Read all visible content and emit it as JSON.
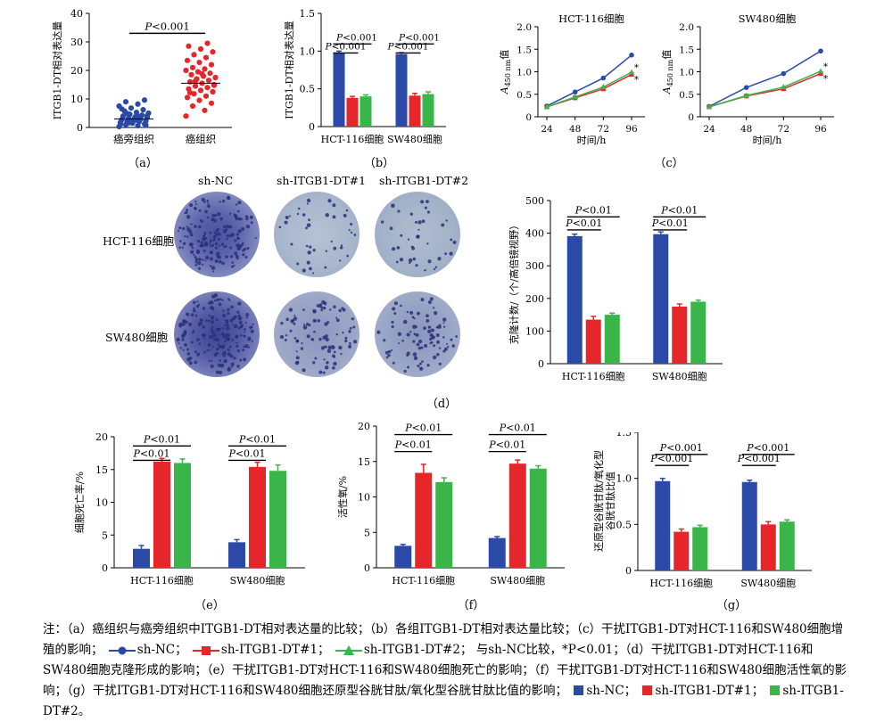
{
  "colors": {
    "nc": "#2b4aa8",
    "dt1": "#e5262a",
    "dt2": "#3ab54a"
  },
  "captions": [
    "（a）",
    "（b）",
    "（c）",
    "（d）",
    "（e）",
    "（f）",
    "（g）"
  ],
  "panel_d_labels": {
    "cols": [
      "sh-NC",
      "sh-ITGB1-DT#1",
      "sh-ITGB1-DT#2"
    ],
    "rows": [
      "HCT-116细胞",
      "SW480细胞"
    ]
  },
  "note": {
    "p1": "注：（a）癌组织与癌旁组织中ITGB1-DT相对表达量的比较；（b）各组ITGB1-DT相对表达量比较；（c）干扰ITGB1-DT对HCT-116和SW480细胞增殖的影响；",
    "l1": "sh-NC；",
    "l2": "sh-ITGB1-DT#1；",
    "l3": "sh-ITGB1-DT#2；",
    "p2": "与sh-NC比较，*P<0.01；（d）干扰ITGB1-DT对HCT-116和SW480细胞克隆形成的影响；（e）干扰ITGB1-DT对HCT-116和SW480细胞死亡的影响；（f）干扰ITGB1-DT对HCT-116和SW480细胞活性氧的影响；（g）干扰ITGB1-DT对HCT-116和SW480细胞还原型谷胱甘肽/氧化型谷胱甘肽比值的影响；",
    "b1": "sh-NC；",
    "b2": "sh-ITGB1-DT#1；",
    "b3": "sh-ITGB1-DT#2。"
  },
  "chart_data": [
    {
      "id": "a",
      "type": "scatter",
      "ylabel": "ITGB1-DT相对表达量",
      "ylim": [
        0,
        40
      ],
      "yticks": [
        0,
        10,
        20,
        30,
        40
      ],
      "categories": [
        "癌旁组织",
        "癌组织"
      ],
      "pval": "P<0.001",
      "group_means": [
        3,
        15.5
      ],
      "points": {
        "癌旁组织": [
          0.3,
          0.6,
          1,
          1.2,
          1.5,
          1.8,
          2,
          2.1,
          2.3,
          2.5,
          2.7,
          3,
          3.2,
          3.5,
          3.7,
          4,
          4.3,
          4.6,
          5,
          5.3,
          5.8,
          6.2,
          6.8,
          7.5,
          8.2,
          9,
          9.6,
          2.2,
          1.1,
          3.8,
          4.9,
          0.8,
          2.9,
          6.5,
          3.3,
          1.6,
          4.1,
          2.6
        ],
        "癌组织": [
          4,
          6,
          7.5,
          8.5,
          9.5,
          10.5,
          11,
          11.8,
          12.5,
          13,
          13.5,
          14,
          14.5,
          15,
          15.5,
          16,
          16.5,
          17,
          17.5,
          18,
          18.5,
          19,
          19.5,
          20,
          20.5,
          21,
          22,
          22.8,
          23.5,
          24.5,
          25.5,
          26.5,
          27.5,
          28.5,
          29.5,
          16.2,
          14.8,
          18.8,
          12.2
        ]
      }
    },
    {
      "id": "b",
      "type": "bar",
      "ylabel": "ITGB1-DT相对表达量",
      "ylim": [
        0,
        1.5
      ],
      "yticks": [
        0,
        0.5,
        1.0,
        1.5
      ],
      "ytick_labels": [
        "0",
        "0.5",
        "1.0",
        "1.5"
      ],
      "categories": [
        "HCT-116细胞",
        "SW480细胞"
      ],
      "series": [
        {
          "values": [
            0.97,
            0.96
          ],
          "errors": [
            0.03,
            0.02
          ]
        },
        {
          "values": [
            0.38,
            0.41
          ],
          "errors": [
            0.02,
            0.03
          ]
        },
        {
          "values": [
            0.4,
            0.43
          ],
          "errors": [
            0.02,
            0.03
          ]
        }
      ],
      "pvals": [
        "P<0.001",
        "P<0.001"
      ]
    },
    {
      "id": "c1",
      "type": "line",
      "title": "HCT-116细胞",
      "ylabel_main": "A",
      "ylabel_sub": "450 nm",
      "ylabel_tail": "值",
      "xlabel": "时间/h",
      "ylim": [
        0,
        2.0
      ],
      "yticks": [
        0,
        0.5,
        1.0,
        1.5,
        2.0
      ],
      "ytick_labels": [
        "0",
        "0.5",
        "1.0",
        "1.5",
        "2.0"
      ],
      "x": [
        24,
        48,
        72,
        96
      ],
      "series": [
        {
          "values": [
            0.24,
            0.55,
            0.86,
            1.37
          ]
        },
        {
          "values": [
            0.22,
            0.42,
            0.62,
            0.94
          ]
        },
        {
          "values": [
            0.22,
            0.44,
            0.66,
            0.99
          ]
        }
      ],
      "stars": [
        "*",
        "*"
      ]
    },
    {
      "id": "c2",
      "type": "line",
      "title": "SW480细胞",
      "ylabel_main": "A",
      "ylabel_sub": "450 nm",
      "ylabel_tail": "值",
      "xlabel": "时间/h",
      "ylim": [
        0,
        2.0
      ],
      "yticks": [
        0,
        0.5,
        1.0,
        1.5,
        2.0
      ],
      "ytick_labels": [
        "0",
        "0.5",
        "1.0",
        "1.5",
        "2.0"
      ],
      "x": [
        24,
        48,
        72,
        96
      ],
      "series": [
        {
          "values": [
            0.23,
            0.65,
            0.96,
            1.46
          ]
        },
        {
          "values": [
            0.22,
            0.46,
            0.62,
            0.96
          ]
        },
        {
          "values": [
            0.22,
            0.47,
            0.66,
            1.01
          ]
        }
      ],
      "stars": [
        "*",
        "*"
      ]
    },
    {
      "id": "d",
      "type": "bar",
      "ylabel": "克隆计数/（个/高倍镜视野）",
      "ylim": [
        0,
        500
      ],
      "yticks": [
        0,
        100,
        200,
        300,
        400,
        500
      ],
      "categories": [
        "HCT-116细胞",
        "SW480细胞"
      ],
      "series": [
        {
          "values": [
            391,
            397
          ],
          "errors": [
            6,
            7
          ]
        },
        {
          "values": [
            135,
            175
          ],
          "errors": [
            10,
            8
          ]
        },
        {
          "values": [
            150,
            190
          ],
          "errors": [
            5,
            5
          ]
        }
      ],
      "pvals": [
        "P<0.01",
        "P<0.01"
      ]
    },
    {
      "id": "e",
      "type": "bar",
      "ylabel": "细胞死亡率/%",
      "ylim": [
        0,
        20
      ],
      "yticks": [
        0,
        5,
        10,
        15,
        20
      ],
      "categories": [
        "HCT-116细胞",
        "SW480细胞"
      ],
      "series": [
        {
          "values": [
            2.9,
            3.9
          ],
          "errors": [
            0.5,
            0.4
          ]
        },
        {
          "values": [
            16.2,
            15.4
          ],
          "errors": [
            0.5,
            0.7
          ]
        },
        {
          "values": [
            16.0,
            14.8
          ],
          "errors": [
            0.6,
            0.9
          ]
        }
      ],
      "pvals": [
        "P<0.01",
        "P<0.01"
      ]
    },
    {
      "id": "f",
      "type": "bar",
      "ylabel": "活性氧/%",
      "ylim": [
        0,
        20
      ],
      "yticks": [
        0,
        5,
        10,
        15,
        20
      ],
      "categories": [
        "HCT-116细胞",
        "SW480细胞"
      ],
      "series": [
        {
          "values": [
            3.1,
            4.2
          ],
          "errors": [
            0.2,
            0.2
          ]
        },
        {
          "values": [
            13.4,
            14.7
          ],
          "errors": [
            1.2,
            0.5
          ]
        },
        {
          "values": [
            12.1,
            14.0
          ],
          "errors": [
            0.6,
            0.4
          ]
        }
      ],
      "pvals": [
        "P<0.01",
        "P<0.01"
      ]
    },
    {
      "id": "g",
      "type": "bar",
      "ylabel": "还原型谷胱甘肽/氧化型谷胱甘肽比值",
      "ylim": [
        0,
        1.5
      ],
      "yticks": [
        0,
        0.5,
        1.0,
        1.5
      ],
      "ytick_labels": [
        "0",
        "0.5",
        "1.0",
        "1.5"
      ],
      "categories": [
        "HCT-116细胞",
        "SW480细胞"
      ],
      "series": [
        {
          "values": [
            0.97,
            0.96
          ],
          "errors": [
            0.03,
            0.02
          ]
        },
        {
          "values": [
            0.42,
            0.5
          ],
          "errors": [
            0.03,
            0.03
          ]
        },
        {
          "values": [
            0.47,
            0.53
          ],
          "errors": [
            0.02,
            0.02
          ]
        }
      ],
      "pvals": [
        "P<0.001",
        "P<0.001"
      ]
    }
  ]
}
